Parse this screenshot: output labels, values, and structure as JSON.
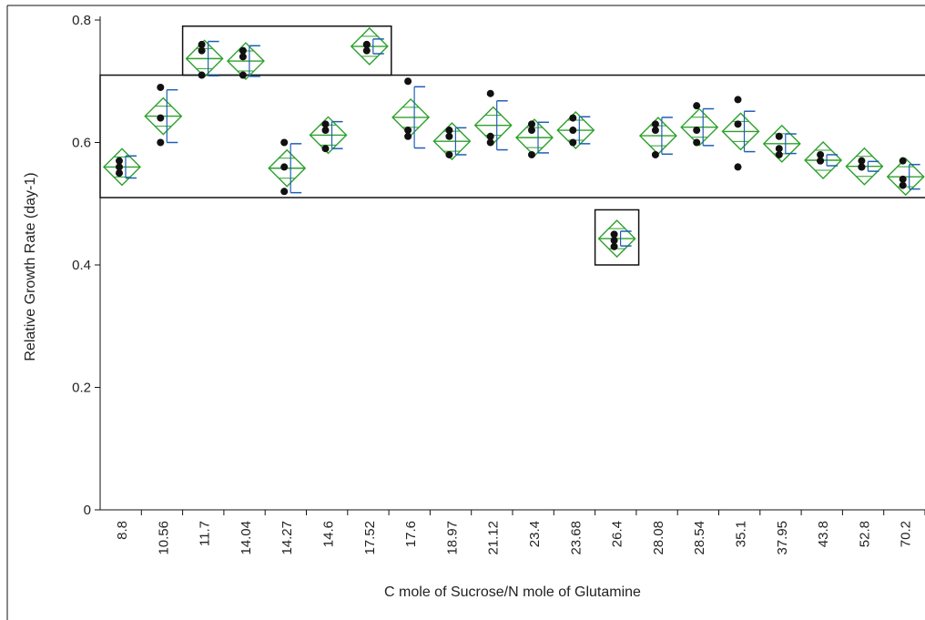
{
  "chart_data": {
    "type": "scatter",
    "title": "",
    "xlabel": "C mole of Sucrose/N mole of Glutamine",
    "ylabel": "Relative Growth Rate (day-1)",
    "ylim": [
      0,
      0.8
    ],
    "yticks": [
      "0",
      "0.2",
      "0.4",
      "0.6",
      "0.8"
    ],
    "grid": false,
    "legend": "none",
    "categories": [
      "8.8",
      "10.56",
      "11.7",
      "14.04",
      "14.27",
      "14.6",
      "17.52",
      "17.6",
      "18.97",
      "21.12",
      "23.4",
      "23.68",
      "26.4",
      "28.08",
      "28.54",
      "35.1",
      "37.95",
      "43.8",
      "52.8",
      "70.2"
    ],
    "means": [
      0.56,
      0.643,
      0.737,
      0.733,
      0.558,
      0.612,
      0.757,
      0.641,
      0.602,
      0.628,
      0.608,
      0.62,
      0.443,
      0.611,
      0.625,
      0.618,
      0.598,
      0.571,
      0.561,
      0.544
    ],
    "points": [
      [
        0.57,
        0.55,
        0.56
      ],
      [
        0.69,
        0.64,
        0.6
      ],
      [
        0.76,
        0.75,
        0.71
      ],
      [
        0.75,
        0.74,
        0.71
      ],
      [
        0.6,
        0.56,
        0.52
      ],
      [
        0.63,
        0.62,
        0.59
      ],
      [
        0.76,
        0.76,
        0.75
      ],
      [
        0.7,
        0.62,
        0.61
      ],
      [
        0.62,
        0.61,
        0.58
      ],
      [
        0.68,
        0.61,
        0.6
      ],
      [
        0.63,
        0.62,
        0.58
      ],
      [
        0.64,
        0.62,
        0.6
      ],
      [
        0.45,
        0.43,
        0.44
      ],
      [
        0.63,
        0.62,
        0.58
      ],
      [
        0.66,
        0.62,
        0.6
      ],
      [
        0.67,
        0.63,
        0.56
      ],
      [
        0.61,
        0.59,
        0.58
      ],
      [
        0.58,
        0.57,
        0.57
      ],
      [
        0.57,
        0.56,
        0.56
      ],
      [
        0.57,
        0.54,
        0.53
      ]
    ],
    "ci_halfwidth": [
      0.018,
      0.043,
      0.028,
      0.025,
      0.04,
      0.022,
      0.012,
      0.05,
      0.022,
      0.04,
      0.025,
      0.022,
      0.012,
      0.03,
      0.03,
      0.033,
      0.016,
      0.009,
      0.008,
      0.02
    ],
    "group_boxes": [
      {
        "from": "11.7",
        "to": "17.52",
        "ymin": 0.71,
        "ymax": 0.79
      },
      {
        "from": "8.8",
        "to": "70.2",
        "ymin": 0.51,
        "ymax": 0.71
      },
      {
        "from": "26.4",
        "to": "26.4",
        "ymin": 0.4,
        "ymax": 0.49
      }
    ],
    "colors": {
      "diamond": "#2ca02c",
      "errorbar": "#1f5fb4",
      "point": "#111111",
      "box": "#111111"
    }
  }
}
